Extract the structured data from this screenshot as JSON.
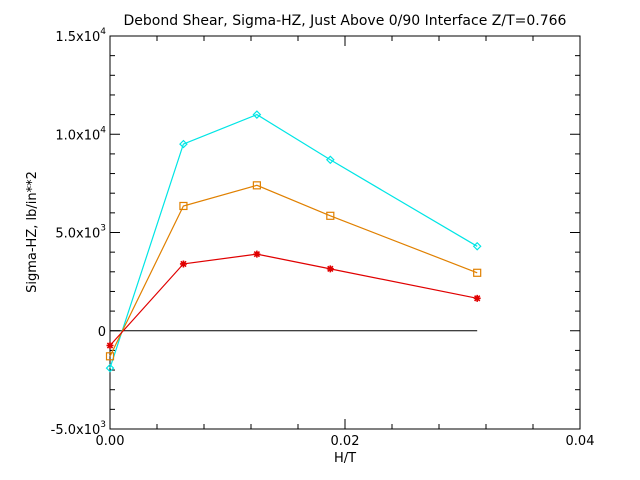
{
  "chart_data": {
    "type": "line",
    "title": "Debond Shear, Sigma-HZ, Just Above 0/90 Interface Z/T=0.766",
    "xlabel": "H/T",
    "ylabel": "Sigma-HZ,  lb/in**2",
    "xlim": [
      0.0,
      0.04
    ],
    "ylim": [
      -5000,
      15000
    ],
    "x_ticks": [
      {
        "value": 0.0,
        "label": "0.00"
      },
      {
        "value": 0.02,
        "label": "0.02"
      },
      {
        "value": 0.04,
        "label": "0.04"
      }
    ],
    "y_ticks": [
      {
        "value": -5000,
        "mantissa": "-5.0x10",
        "exp": "3"
      },
      {
        "value": 0,
        "mantissa": "0",
        "exp": ""
      },
      {
        "value": 5000,
        "mantissa": "5.0x10",
        "exp": "3"
      },
      {
        "value": 10000,
        "mantissa": "1.0x10",
        "exp": "4"
      },
      {
        "value": 15000,
        "mantissa": "1.5x10",
        "exp": "4"
      }
    ],
    "zero_line": {
      "x_start": 0.0,
      "x_end": 0.03125
    },
    "grid": false,
    "series": [
      {
        "color": "#00e5e5",
        "marker": "diamond",
        "x": [
          0.0,
          0.00625,
          0.0125,
          0.01875,
          0.03125
        ],
        "y": [
          -1900,
          9500,
          11000,
          8700,
          4300
        ]
      },
      {
        "color": "#e08000",
        "marker": "square",
        "x": [
          0.0,
          0.00625,
          0.0125,
          0.01875,
          0.03125
        ],
        "y": [
          -1300,
          6350,
          7400,
          5850,
          2950
        ]
      },
      {
        "color": "#e00000",
        "marker": "asterisk",
        "x": [
          0.0,
          0.00625,
          0.0125,
          0.01875,
          0.03125
        ],
        "y": [
          -750,
          3400,
          3900,
          3150,
          1650
        ]
      }
    ]
  }
}
